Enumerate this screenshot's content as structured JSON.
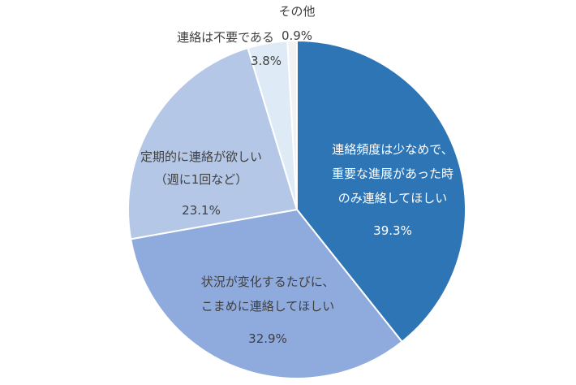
{
  "chart_data": {
    "type": "pie",
    "title": "",
    "legend": "none",
    "slices": [
      {
        "label_lines": [
          "連絡頻度は少なめで、",
          "重要な進展があった時",
          "のみ連絡してほしい"
        ],
        "value": 39.3,
        "value_label": "39.3%",
        "color": "#2E75B6"
      },
      {
        "label_lines": [
          "状況が変化するたびに、",
          "こまめに連絡してほしい"
        ],
        "value": 32.9,
        "value_label": "32.9%",
        "color": "#8FAADC"
      },
      {
        "label_lines": [
          "定期的に連絡が欲しい",
          "（週に1回など）"
        ],
        "value": 23.1,
        "value_label": "23.1%",
        "color": "#B4C7E7"
      },
      {
        "label_lines": [
          "連絡は不要である"
        ],
        "value": 3.8,
        "value_label": "3.8%",
        "color": "#DEEBF7"
      },
      {
        "label_lines": [
          "その他"
        ],
        "value": 0.9,
        "value_label": "0.9%",
        "color": "#F2F2F2"
      }
    ]
  }
}
